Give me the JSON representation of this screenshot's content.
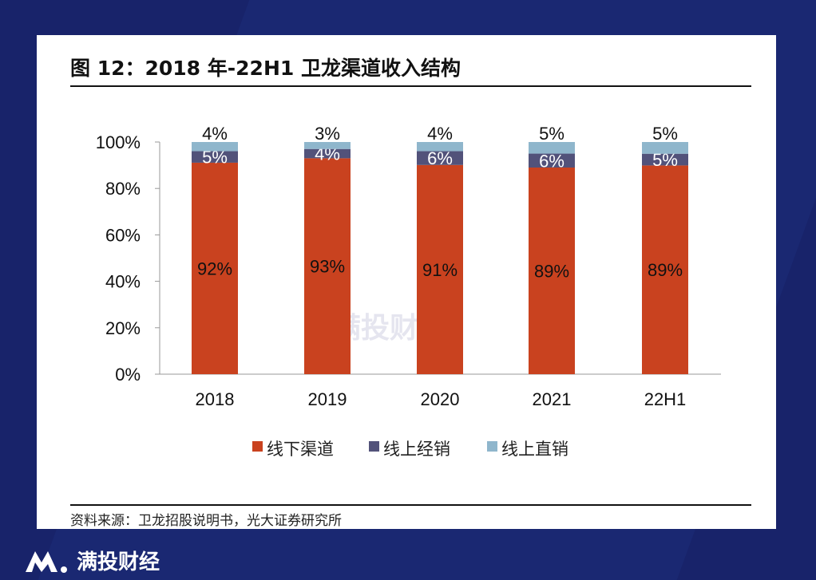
{
  "title": "图 12：2018 年-22H1 卫龙渠道收入结构",
  "source": "资料来源：卫龙招股说明书，光大证券研究所",
  "brand": "满投财经",
  "watermark": "满投财经",
  "chart_data": {
    "type": "bar",
    "stacked": true,
    "categories": [
      "2018",
      "2019",
      "2020",
      "2021",
      "22H1"
    ],
    "series": [
      {
        "name": "线下渠道",
        "values": [
          92,
          93,
          91,
          89,
          89
        ],
        "color": "#c9421f"
      },
      {
        "name": "线上经销",
        "values": [
          5,
          4,
          6,
          6,
          5
        ],
        "color": "#52527a"
      },
      {
        "name": "线上直销",
        "values": [
          4,
          3,
          4,
          5,
          5
        ],
        "color": "#8fb6cc"
      }
    ],
    "yticks": [
      "0%",
      "20%",
      "40%",
      "60%",
      "80%",
      "100%"
    ],
    "ylim": [
      0,
      100
    ],
    "legend": "bottom",
    "grid": false
  }
}
